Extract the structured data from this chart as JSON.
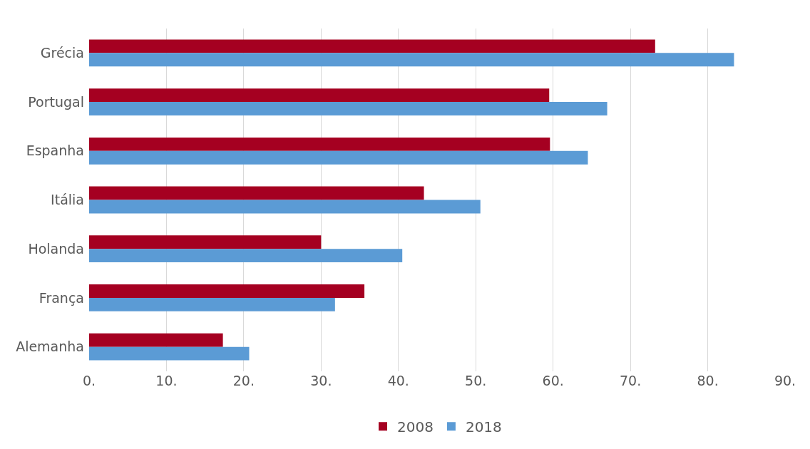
{
  "chart_data": {
    "type": "bar",
    "orientation": "horizontal",
    "categories": [
      "Grécia",
      "Portugal",
      "Espanha",
      "Itália",
      "Holanda",
      "França",
      "Alemanha"
    ],
    "series": [
      {
        "name": "2008",
        "color": "#a50021",
        "values": [
          73.2,
          59.5,
          59.6,
          43.3,
          30.0,
          35.6,
          17.3
        ]
      },
      {
        "name": "2018",
        "color": "#5b9bd5",
        "values": [
          83.4,
          67.0,
          64.5,
          50.6,
          40.5,
          31.8,
          20.7
        ]
      }
    ],
    "xlim": [
      0,
      90
    ],
    "xticks": [
      {
        "value": 0,
        "label": "0."
      },
      {
        "value": 10,
        "label": "10."
      },
      {
        "value": 20,
        "label": "20."
      },
      {
        "value": 30,
        "label": "30."
      },
      {
        "value": 40,
        "label": "40."
      },
      {
        "value": 50,
        "label": "50."
      },
      {
        "value": 60,
        "label": "60."
      },
      {
        "value": 70,
        "label": "70."
      },
      {
        "value": 80,
        "label": "80."
      },
      {
        "value": 90,
        "label": "90."
      }
    ],
    "grid": "x",
    "legend": "bottom"
  }
}
